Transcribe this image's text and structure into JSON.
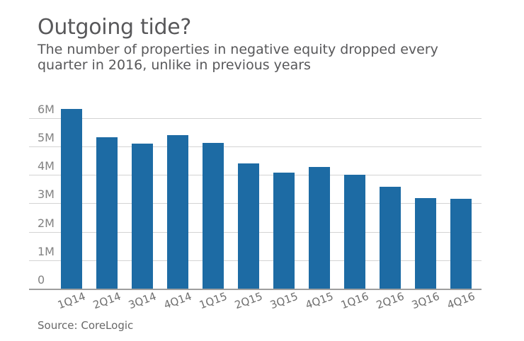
{
  "header": {
    "title": "Outgoing tide?",
    "subtitle_lines": [
      "The number of properties in negative equity dropped every",
      "quarter in 2016, unlike in previous years"
    ]
  },
  "footer": {
    "source": "Source: CoreLogic"
  },
  "colors": {
    "bar": "#1d6ba4",
    "gridline": "#d3d3d3",
    "baseline": "#9e9e9e",
    "title": "#58585a",
    "y_tick": "#828282",
    "x_tick": "#6f6f6f",
    "source": "#686868"
  },
  "chart_data": {
    "type": "bar",
    "title": "Outgoing tide?",
    "subtitle": "The number of properties in negative equity dropped every quarter in 2016, unlike in previous years",
    "categories": [
      "1Q14",
      "2Q14",
      "3Q14",
      "4Q14",
      "1Q15",
      "2Q15",
      "3Q15",
      "4Q15",
      "1Q16",
      "2Q16",
      "3Q16",
      "4Q16"
    ],
    "values": [
      6.32,
      5.33,
      5.1,
      5.4,
      5.12,
      4.41,
      4.08,
      4.28,
      4.0,
      3.58,
      3.19,
      3.17
    ],
    "unit": "millions of properties",
    "xlabel": "",
    "ylabel": "",
    "ylim": [
      0,
      6.35
    ],
    "y_ticks": [
      {
        "value": 6,
        "label": "6M"
      },
      {
        "value": 5,
        "label": "5M"
      },
      {
        "value": 4,
        "label": "4M"
      },
      {
        "value": 3,
        "label": "3M"
      },
      {
        "value": 2,
        "label": "2M"
      },
      {
        "value": 1,
        "label": "1M"
      },
      {
        "value": 0,
        "label": "0"
      }
    ],
    "grid": "horizontal",
    "legend": "none",
    "source": "CoreLogic"
  }
}
